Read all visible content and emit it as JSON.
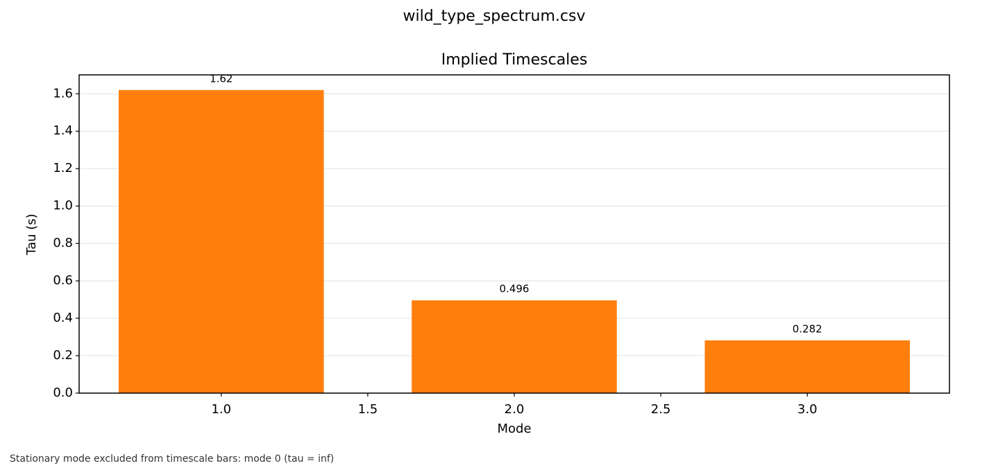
{
  "chart_data": {
    "type": "bar",
    "suptitle": "wild_type_spectrum.csv",
    "title": "Implied Timescales",
    "xlabel": "Mode",
    "ylabel": "Tau (s)",
    "note": "Stationary mode excluded from timescale bars: mode 0 (tau = inf)",
    "x": [
      1,
      2,
      3
    ],
    "values": [
      1.62,
      0.496,
      0.282
    ],
    "color": "#ff7f0e",
    "xlim": [
      0.515,
      3.485
    ],
    "xticks": [
      {
        "value": 1,
        "label": "1.0"
      },
      1.5,
      {
        "value": 2,
        "label": "2.0"
      },
      2.5,
      {
        "value": 3,
        "label": "3.0"
      }
    ],
    "ylim": [
      0,
      1.701
    ],
    "yticks": [
      {
        "value": 0,
        "label": "0.0"
      },
      0.2,
      0.4,
      0.6,
      0.8,
      {
        "value": 1,
        "label": "1.0"
      },
      1.2,
      1.4,
      1.6
    ],
    "grid": true
  }
}
